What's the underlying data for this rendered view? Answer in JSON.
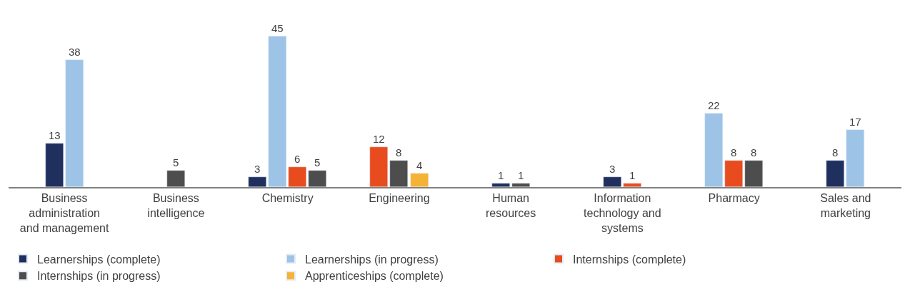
{
  "chart_data": {
    "type": "bar",
    "categories": [
      "Business administration and management",
      "Business intelligence",
      "Chemistry",
      "Engineering",
      "Human resources",
      "Information technology and systems",
      "Pharmacy",
      "Sales and marketing"
    ],
    "series": [
      {
        "name": "Learnerships (complete)",
        "color": "#1f2f5e",
        "values": [
          13,
          null,
          3,
          null,
          1,
          3,
          null,
          8
        ]
      },
      {
        "name": "Learnerships (in progress)",
        "color": "#9dc3e6",
        "values": [
          38,
          null,
          45,
          null,
          null,
          null,
          22,
          17
        ]
      },
      {
        "name": "Internships (complete)",
        "color": "#e84c1e",
        "values": [
          null,
          null,
          6,
          12,
          null,
          1,
          8,
          null
        ]
      },
      {
        "name": "Internships (in progress)",
        "color": "#4d4d4d",
        "values": [
          null,
          5,
          5,
          8,
          1,
          null,
          8,
          null
        ]
      },
      {
        "name": "Apprenticeships (complete)",
        "color": "#f5b335",
        "values": [
          null,
          null,
          null,
          4,
          null,
          null,
          null,
          null
        ]
      }
    ],
    "data_labels": true,
    "legend": "bottom left"
  }
}
